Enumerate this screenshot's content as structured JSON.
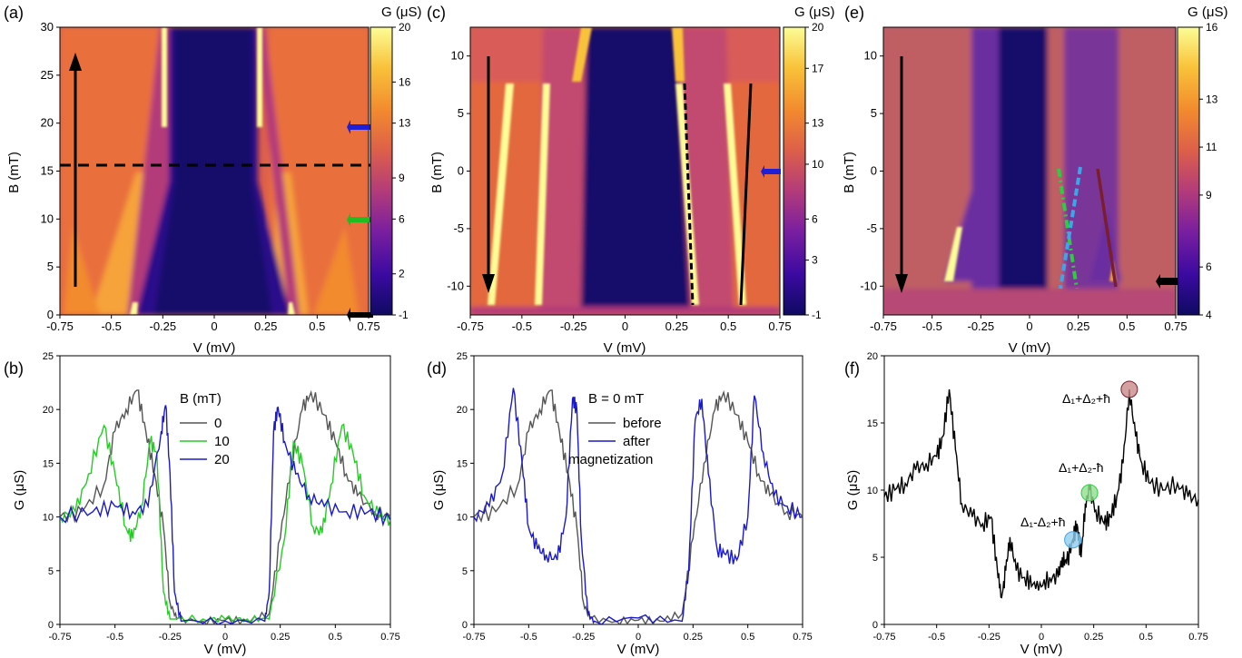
{
  "colors": {
    "cmap": [
      "#0f0a62",
      "#3b0aa0",
      "#7a1fa0",
      "#b33b7a",
      "#dc5f4a",
      "#f28a2e",
      "#f9c23a",
      "#fcfd96"
    ],
    "black": "#000000",
    "gray": "#555555",
    "green": "#22cc22",
    "blue": "#1a1acc",
    "arrow_blue": "#1f1fd6",
    "arrow_green": "#22bb22",
    "cyan": "#3ea6e8",
    "lime": "#2ecc40",
    "maroon": "#7a1e2e",
    "marker_maroon": "#c98a8a",
    "marker_green": "#8fe08f",
    "marker_cyan": "#8fcdf0"
  },
  "chart_data": [
    {
      "panel": "(a)",
      "type": "heatmap",
      "xlabel": "V (mV)",
      "ylabel": "B (mT)",
      "xlim": [
        -0.75,
        0.75
      ],
      "ylim": [
        0,
        30
      ],
      "xticks": [
        "-0.75",
        "-0.5",
        "-0.25",
        "0",
        "0.25",
        "0.5",
        "0.75"
      ],
      "yticks": [
        "0",
        "5",
        "10",
        "15",
        "20",
        "25",
        "30"
      ],
      "colorbar": {
        "title": "G (μS)",
        "ticks": [
          "-1",
          "2",
          "6",
          "9",
          "13",
          "16",
          "20"
        ],
        "range": [
          -1,
          20
        ]
      },
      "annotations": {
        "dashed_line_B": 15.6,
        "arrow": "up",
        "side_arrows": [
          "blue at 20 mT",
          "green at 10 mT",
          "black at 0 mT"
        ]
      }
    },
    {
      "panel": "(b)",
      "type": "line",
      "xlabel": "V (mV)",
      "ylabel": "G (μS)",
      "xlim": [
        -0.75,
        0.75
      ],
      "ylim": [
        0,
        25
      ],
      "xticks": [
        "-0.75",
        "-0.5",
        "-0.25",
        "0",
        "0.25",
        "0.5",
        "0.75"
      ],
      "yticks": [
        "0",
        "5",
        "10",
        "15",
        "20",
        "25"
      ],
      "legend_title": "B (mT)",
      "series": [
        {
          "name": "0",
          "color": "#555555",
          "points": [
            [
              -0.75,
              10
            ],
            [
              -0.65,
              10.5
            ],
            [
              -0.55,
              13
            ],
            [
              -0.5,
              18
            ],
            [
              -0.45,
              20
            ],
            [
              -0.4,
              21.8
            ],
            [
              -0.36,
              18
            ],
            [
              -0.32,
              14
            ],
            [
              -0.28,
              9
            ],
            [
              -0.25,
              2
            ],
            [
              -0.22,
              0.5
            ],
            [
              -0.1,
              0.3
            ],
            [
              0,
              0.4
            ],
            [
              0.1,
              0.3
            ],
            [
              0.2,
              1
            ],
            [
              0.25,
              8
            ],
            [
              0.3,
              15
            ],
            [
              0.35,
              20
            ],
            [
              0.39,
              21.6
            ],
            [
              0.45,
              19.5
            ],
            [
              0.5,
              17
            ],
            [
              0.55,
              14
            ],
            [
              0.6,
              12
            ],
            [
              0.68,
              10.5
            ],
            [
              0.75,
              10
            ]
          ]
        },
        {
          "name": "10",
          "color": "#22cc22",
          "points": [
            [
              -0.75,
              10
            ],
            [
              -0.68,
              10.5
            ],
            [
              -0.62,
              14
            ],
            [
              -0.55,
              18.5
            ],
            [
              -0.5,
              14
            ],
            [
              -0.45,
              9
            ],
            [
              -0.42,
              8
            ],
            [
              -0.38,
              11
            ],
            [
              -0.34,
              17
            ],
            [
              -0.31,
              16
            ],
            [
              -0.28,
              3
            ],
            [
              -0.25,
              0.5
            ],
            [
              -0.1,
              0.5
            ],
            [
              0,
              0.5
            ],
            [
              0.1,
              0.5
            ],
            [
              0.2,
              0.5
            ],
            [
              0.27,
              8
            ],
            [
              0.31,
              17
            ],
            [
              0.35,
              15
            ],
            [
              0.4,
              9
            ],
            [
              0.44,
              8.5
            ],
            [
              0.48,
              13
            ],
            [
              0.53,
              18.5
            ],
            [
              0.58,
              16
            ],
            [
              0.63,
              12
            ],
            [
              0.7,
              10
            ],
            [
              0.75,
              9.8
            ]
          ]
        },
        {
          "name": "20",
          "color": "#1a1acc",
          "points": [
            [
              -0.75,
              10
            ],
            [
              -0.6,
              10.5
            ],
            [
              -0.5,
              11
            ],
            [
              -0.42,
              10.5
            ],
            [
              -0.35,
              11
            ],
            [
              -0.29,
              18
            ],
            [
              -0.27,
              20.4
            ],
            [
              -0.25,
              14
            ],
            [
              -0.23,
              3
            ],
            [
              -0.2,
              0.3
            ],
            [
              0,
              0.3
            ],
            [
              0.18,
              0.3
            ],
            [
              0.2,
              3
            ],
            [
              0.22,
              18
            ],
            [
              0.24,
              20.2
            ],
            [
              0.27,
              17
            ],
            [
              0.32,
              14
            ],
            [
              0.38,
              12
            ],
            [
              0.45,
              11
            ],
            [
              0.55,
              10.5
            ],
            [
              0.65,
              10.5
            ],
            [
              0.75,
              9.7
            ]
          ]
        }
      ]
    },
    {
      "panel": "(c)",
      "type": "heatmap",
      "xlabel": "V (mV)",
      "ylabel": "B (mT)",
      "xlim": [
        -0.75,
        0.75
      ],
      "ylim": [
        -12.5,
        12.5
      ],
      "xticks": [
        "-0.75",
        "-0.5",
        "-0.25",
        "0",
        "0.25",
        "0.5",
        "0.75"
      ],
      "yticks": [
        "-10",
        "-5",
        "0",
        "5",
        "10"
      ],
      "colorbar": {
        "title": "G (μS)",
        "ticks": [
          "-1",
          "3",
          "6",
          "10",
          "13",
          "17",
          "20"
        ],
        "range": [
          -1,
          20
        ]
      },
      "annotations": {
        "arrow": "down",
        "side_arrows": [
          "blue at 0 mT"
        ]
      }
    },
    {
      "panel": "(d)",
      "type": "line",
      "xlabel": "V (mV)",
      "ylabel": "G (μS)",
      "xlim": [
        -0.75,
        0.75
      ],
      "ylim": [
        0,
        25
      ],
      "xticks": [
        "-0.75",
        "-0.5",
        "-0.25",
        "0",
        "0.25",
        "0.5",
        "0.75"
      ],
      "yticks": [
        "0",
        "5",
        "10",
        "15",
        "20",
        "25"
      ],
      "legend_title": "B = 0 mT",
      "series": [
        {
          "name": "before",
          "color": "#555555",
          "points": [
            [
              -0.75,
              10
            ],
            [
              -0.65,
              10.5
            ],
            [
              -0.55,
              13
            ],
            [
              -0.5,
              18
            ],
            [
              -0.45,
              20
            ],
            [
              -0.4,
              21.8
            ],
            [
              -0.36,
              18
            ],
            [
              -0.32,
              14
            ],
            [
              -0.28,
              9
            ],
            [
              -0.25,
              2
            ],
            [
              -0.22,
              0.5
            ],
            [
              -0.1,
              0.3
            ],
            [
              0,
              0.4
            ],
            [
              0.1,
              0.3
            ],
            [
              0.2,
              1
            ],
            [
              0.25,
              8
            ],
            [
              0.3,
              15
            ],
            [
              0.35,
              20
            ],
            [
              0.39,
              21.6
            ],
            [
              0.45,
              19.5
            ],
            [
              0.5,
              17
            ],
            [
              0.55,
              14
            ],
            [
              0.6,
              12
            ],
            [
              0.68,
              10.5
            ],
            [
              0.75,
              10
            ]
          ]
        },
        {
          "name": "after magnetization",
          "color": "#1a1acc",
          "points": [
            [
              -0.75,
              10
            ],
            [
              -0.68,
              11
            ],
            [
              -0.62,
              14
            ],
            [
              -0.57,
              22
            ],
            [
              -0.53,
              15
            ],
            [
              -0.5,
              9
            ],
            [
              -0.46,
              7
            ],
            [
              -0.42,
              6.5
            ],
            [
              -0.37,
              6
            ],
            [
              -0.33,
              10
            ],
            [
              -0.3,
              21
            ],
            [
              -0.28,
              20
            ],
            [
              -0.26,
              8
            ],
            [
              -0.23,
              1
            ],
            [
              -0.2,
              0.3
            ],
            [
              0,
              0.6
            ],
            [
              0.2,
              0.3
            ],
            [
              0.23,
              5
            ],
            [
              0.26,
              19
            ],
            [
              0.29,
              21
            ],
            [
              0.32,
              14
            ],
            [
              0.36,
              7
            ],
            [
              0.4,
              6.5
            ],
            [
              0.45,
              6
            ],
            [
              0.5,
              10
            ],
            [
              0.53,
              21.3
            ],
            [
              0.57,
              16
            ],
            [
              0.62,
              12
            ],
            [
              0.68,
              11
            ],
            [
              0.75,
              10
            ]
          ]
        }
      ]
    },
    {
      "panel": "(e)",
      "type": "heatmap",
      "xlabel": "V (mV)",
      "ylabel": "B (mT)",
      "xlim": [
        -0.75,
        0.75
      ],
      "ylim": [
        -12.5,
        12.5
      ],
      "xticks": [
        "-0.75",
        "-0.5",
        "-0.25",
        "0",
        "0.25",
        "0.5",
        "0.75"
      ],
      "yticks": [
        "-10",
        "-5",
        "0",
        "5",
        "10"
      ],
      "colorbar": {
        "title": "G (μS)",
        "ticks": [
          "4",
          "6",
          "9",
          "11",
          "13",
          "16"
        ],
        "range": [
          4,
          16
        ]
      },
      "annotations": {
        "arrow": "down",
        "side_arrows": [
          "black at -9.7 mT"
        ]
      }
    },
    {
      "panel": "(f)",
      "type": "line",
      "xlabel": "V (mV)",
      "ylabel": "G (μS)",
      "xlim": [
        -0.75,
        0.75
      ],
      "ylim": [
        0,
        20
      ],
      "xticks": [
        "-0.75",
        "-0.5",
        "-0.25",
        "0",
        "0.25",
        "0.5",
        "0.75"
      ],
      "yticks": [
        "0",
        "5",
        "10",
        "15",
        "20"
      ],
      "series": [
        {
          "name": "",
          "color": "#000000",
          "points": [
            [
              -0.75,
              9.5
            ],
            [
              -0.7,
              10
            ],
            [
              -0.65,
              10.5
            ],
            [
              -0.6,
              11.5
            ],
            [
              -0.55,
              12
            ],
            [
              -0.5,
              12.5
            ],
            [
              -0.47,
              14
            ],
            [
              -0.44,
              17.5
            ],
            [
              -0.41,
              13
            ],
            [
              -0.38,
              9
            ],
            [
              -0.33,
              8
            ],
            [
              -0.28,
              7.5
            ],
            [
              -0.24,
              8
            ],
            [
              -0.21,
              4
            ],
            [
              -0.19,
              2
            ],
            [
              -0.17,
              4
            ],
            [
              -0.15,
              6.5
            ],
            [
              -0.12,
              4
            ],
            [
              -0.08,
              3.5
            ],
            [
              -0.04,
              3
            ],
            [
              0,
              2.8
            ],
            [
              0.04,
              3.5
            ],
            [
              0.08,
              3.5
            ],
            [
              0.1,
              5
            ],
            [
              0.12,
              4.5
            ],
            [
              0.15,
              6.3
            ],
            [
              0.17,
              7.5
            ],
            [
              0.19,
              5
            ],
            [
              0.21,
              9
            ],
            [
              0.23,
              10
            ],
            [
              0.26,
              8.5
            ],
            [
              0.3,
              7.5
            ],
            [
              0.33,
              8
            ],
            [
              0.36,
              9.5
            ],
            [
              0.39,
              12
            ],
            [
              0.42,
              17.5
            ],
            [
              0.45,
              14
            ],
            [
              0.48,
              12
            ],
            [
              0.52,
              10.5
            ],
            [
              0.58,
              10
            ],
            [
              0.65,
              10.5
            ],
            [
              0.7,
              9.5
            ],
            [
              0.75,
              9.3
            ]
          ]
        }
      ],
      "annotations": [
        {
          "text": "Δ₁+Δ₂+ħ",
          "x": 0.42,
          "y": 17.5
        },
        {
          "text": "Δ₁+Δ₂-ħ",
          "x": 0.23,
          "y": 9.8
        },
        {
          "text": "Δ₁-Δ₂+ħ",
          "x": 0.15,
          "y": 6.3
        }
      ]
    }
  ],
  "panel_labels": {
    "a": "(a)",
    "b": "(b)",
    "c": "(c)",
    "d": "(d)",
    "e": "(e)",
    "f": "(f)"
  },
  "texts": {
    "v_axis": "V (mV)",
    "b_axis": "B (mT)",
    "g_axis": "G (μS)",
    "cb_title": "G (μS)",
    "b_legend_title": "B (mT)",
    "b0_title": "B = 0 mT",
    "before": "before",
    "after": "after",
    "magnetization": "magnetization",
    "legend_0": "0",
    "legend_10": "10",
    "legend_20": "20",
    "ann_1": "Δ",
    "ann_f1": "Δ₁+Δ₂+ħ",
    "ann_f2": "Δ₁+Δ₂-ħ",
    "ann_f3": "Δ₁-Δ₂+ħ"
  }
}
